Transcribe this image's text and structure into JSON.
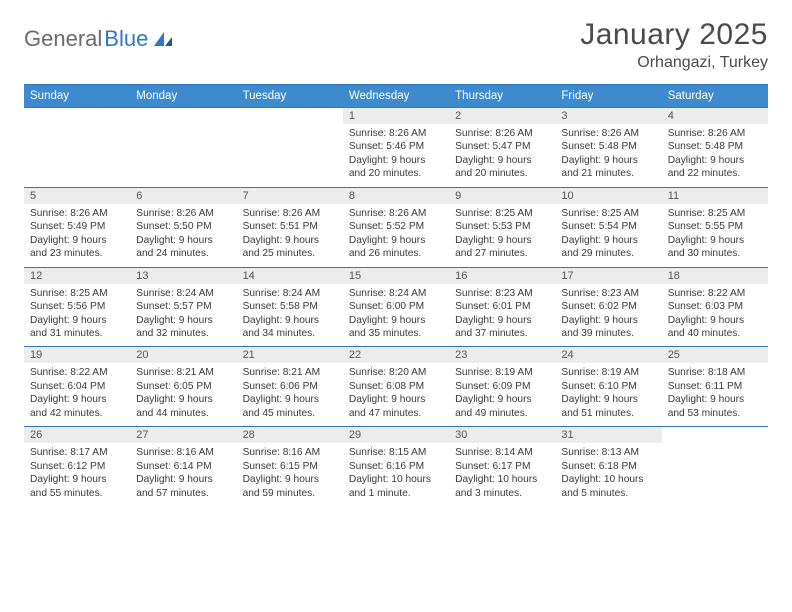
{
  "brand": {
    "part1": "General",
    "part2": "Blue"
  },
  "title": "January 2025",
  "location": "Orhangazi, Turkey",
  "colors": {
    "header_bg": "#3d8bce",
    "header_text": "#ffffff",
    "rule": "#2f78bf",
    "daynum_bg": "#ececec",
    "body_text": "#3a3a3a",
    "page_bg": "#ffffff"
  },
  "typography": {
    "title_fontsize": 30,
    "location_fontsize": 16,
    "header_fontsize": 11.5,
    "daynum_fontsize": 11,
    "cell_fontsize": 10.2
  },
  "day_headers": [
    "Sunday",
    "Monday",
    "Tuesday",
    "Wednesday",
    "Thursday",
    "Friday",
    "Saturday"
  ],
  "weeks": [
    [
      {
        "n": "",
        "l1": "",
        "l2": "",
        "l3": "",
        "l4": ""
      },
      {
        "n": "",
        "l1": "",
        "l2": "",
        "l3": "",
        "l4": ""
      },
      {
        "n": "",
        "l1": "",
        "l2": "",
        "l3": "",
        "l4": ""
      },
      {
        "n": "1",
        "l1": "Sunrise: 8:26 AM",
        "l2": "Sunset: 5:46 PM",
        "l3": "Daylight: 9 hours",
        "l4": "and 20 minutes."
      },
      {
        "n": "2",
        "l1": "Sunrise: 8:26 AM",
        "l2": "Sunset: 5:47 PM",
        "l3": "Daylight: 9 hours",
        "l4": "and 20 minutes."
      },
      {
        "n": "3",
        "l1": "Sunrise: 8:26 AM",
        "l2": "Sunset: 5:48 PM",
        "l3": "Daylight: 9 hours",
        "l4": "and 21 minutes."
      },
      {
        "n": "4",
        "l1": "Sunrise: 8:26 AM",
        "l2": "Sunset: 5:48 PM",
        "l3": "Daylight: 9 hours",
        "l4": "and 22 minutes."
      }
    ],
    [
      {
        "n": "5",
        "l1": "Sunrise: 8:26 AM",
        "l2": "Sunset: 5:49 PM",
        "l3": "Daylight: 9 hours",
        "l4": "and 23 minutes."
      },
      {
        "n": "6",
        "l1": "Sunrise: 8:26 AM",
        "l2": "Sunset: 5:50 PM",
        "l3": "Daylight: 9 hours",
        "l4": "and 24 minutes."
      },
      {
        "n": "7",
        "l1": "Sunrise: 8:26 AM",
        "l2": "Sunset: 5:51 PM",
        "l3": "Daylight: 9 hours",
        "l4": "and 25 minutes."
      },
      {
        "n": "8",
        "l1": "Sunrise: 8:26 AM",
        "l2": "Sunset: 5:52 PM",
        "l3": "Daylight: 9 hours",
        "l4": "and 26 minutes."
      },
      {
        "n": "9",
        "l1": "Sunrise: 8:25 AM",
        "l2": "Sunset: 5:53 PM",
        "l3": "Daylight: 9 hours",
        "l4": "and 27 minutes."
      },
      {
        "n": "10",
        "l1": "Sunrise: 8:25 AM",
        "l2": "Sunset: 5:54 PM",
        "l3": "Daylight: 9 hours",
        "l4": "and 29 minutes."
      },
      {
        "n": "11",
        "l1": "Sunrise: 8:25 AM",
        "l2": "Sunset: 5:55 PM",
        "l3": "Daylight: 9 hours",
        "l4": "and 30 minutes."
      }
    ],
    [
      {
        "n": "12",
        "l1": "Sunrise: 8:25 AM",
        "l2": "Sunset: 5:56 PM",
        "l3": "Daylight: 9 hours",
        "l4": "and 31 minutes."
      },
      {
        "n": "13",
        "l1": "Sunrise: 8:24 AM",
        "l2": "Sunset: 5:57 PM",
        "l3": "Daylight: 9 hours",
        "l4": "and 32 minutes."
      },
      {
        "n": "14",
        "l1": "Sunrise: 8:24 AM",
        "l2": "Sunset: 5:58 PM",
        "l3": "Daylight: 9 hours",
        "l4": "and 34 minutes."
      },
      {
        "n": "15",
        "l1": "Sunrise: 8:24 AM",
        "l2": "Sunset: 6:00 PM",
        "l3": "Daylight: 9 hours",
        "l4": "and 35 minutes."
      },
      {
        "n": "16",
        "l1": "Sunrise: 8:23 AM",
        "l2": "Sunset: 6:01 PM",
        "l3": "Daylight: 9 hours",
        "l4": "and 37 minutes."
      },
      {
        "n": "17",
        "l1": "Sunrise: 8:23 AM",
        "l2": "Sunset: 6:02 PM",
        "l3": "Daylight: 9 hours",
        "l4": "and 39 minutes."
      },
      {
        "n": "18",
        "l1": "Sunrise: 8:22 AM",
        "l2": "Sunset: 6:03 PM",
        "l3": "Daylight: 9 hours",
        "l4": "and 40 minutes."
      }
    ],
    [
      {
        "n": "19",
        "l1": "Sunrise: 8:22 AM",
        "l2": "Sunset: 6:04 PM",
        "l3": "Daylight: 9 hours",
        "l4": "and 42 minutes."
      },
      {
        "n": "20",
        "l1": "Sunrise: 8:21 AM",
        "l2": "Sunset: 6:05 PM",
        "l3": "Daylight: 9 hours",
        "l4": "and 44 minutes."
      },
      {
        "n": "21",
        "l1": "Sunrise: 8:21 AM",
        "l2": "Sunset: 6:06 PM",
        "l3": "Daylight: 9 hours",
        "l4": "and 45 minutes."
      },
      {
        "n": "22",
        "l1": "Sunrise: 8:20 AM",
        "l2": "Sunset: 6:08 PM",
        "l3": "Daylight: 9 hours",
        "l4": "and 47 minutes."
      },
      {
        "n": "23",
        "l1": "Sunrise: 8:19 AM",
        "l2": "Sunset: 6:09 PM",
        "l3": "Daylight: 9 hours",
        "l4": "and 49 minutes."
      },
      {
        "n": "24",
        "l1": "Sunrise: 8:19 AM",
        "l2": "Sunset: 6:10 PM",
        "l3": "Daylight: 9 hours",
        "l4": "and 51 minutes."
      },
      {
        "n": "25",
        "l1": "Sunrise: 8:18 AM",
        "l2": "Sunset: 6:11 PM",
        "l3": "Daylight: 9 hours",
        "l4": "and 53 minutes."
      }
    ],
    [
      {
        "n": "26",
        "l1": "Sunrise: 8:17 AM",
        "l2": "Sunset: 6:12 PM",
        "l3": "Daylight: 9 hours",
        "l4": "and 55 minutes."
      },
      {
        "n": "27",
        "l1": "Sunrise: 8:16 AM",
        "l2": "Sunset: 6:14 PM",
        "l3": "Daylight: 9 hours",
        "l4": "and 57 minutes."
      },
      {
        "n": "28",
        "l1": "Sunrise: 8:16 AM",
        "l2": "Sunset: 6:15 PM",
        "l3": "Daylight: 9 hours",
        "l4": "and 59 minutes."
      },
      {
        "n": "29",
        "l1": "Sunrise: 8:15 AM",
        "l2": "Sunset: 6:16 PM",
        "l3": "Daylight: 10 hours",
        "l4": "and 1 minute."
      },
      {
        "n": "30",
        "l1": "Sunrise: 8:14 AM",
        "l2": "Sunset: 6:17 PM",
        "l3": "Daylight: 10 hours",
        "l4": "and 3 minutes."
      },
      {
        "n": "31",
        "l1": "Sunrise: 8:13 AM",
        "l2": "Sunset: 6:18 PM",
        "l3": "Daylight: 10 hours",
        "l4": "and 5 minutes."
      },
      {
        "n": "",
        "l1": "",
        "l2": "",
        "l3": "",
        "l4": ""
      }
    ]
  ]
}
